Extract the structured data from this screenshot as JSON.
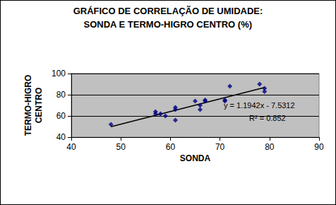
{
  "chart_data": {
    "type": "scatter",
    "title": "GRÁFICO DE CORRELAÇÃO DE UMIDADE:\nSONDA E TERMO-HIGRO CENTRO (%)",
    "xlabel": "SONDA",
    "ylabel": "TERMO-HIGRO\nCENTRO",
    "x": [
      48,
      57,
      57,
      58,
      59,
      61,
      61,
      61,
      65,
      66,
      66,
      67,
      67,
      71,
      71,
      72,
      78,
      79,
      79
    ],
    "values": [
      52,
      64,
      62,
      62,
      60,
      68,
      66,
      56,
      74,
      66,
      70,
      75,
      74,
      74,
      75,
      88,
      90,
      86,
      83
    ],
    "color": "#000080",
    "marker": "diamond",
    "trendline": {
      "slope": 1.1942,
      "intercept": -7.5312,
      "color": "#000000"
    },
    "annotations": [
      "y = 1.1942x - 7.5312",
      "R² = 0.852"
    ],
    "xlim": [
      40,
      90
    ],
    "xticks": [
      40,
      50,
      60,
      70,
      80,
      90
    ],
    "ylim": [
      40,
      100
    ],
    "yticks": [
      40,
      60,
      80,
      100
    ],
    "grid": true
  }
}
